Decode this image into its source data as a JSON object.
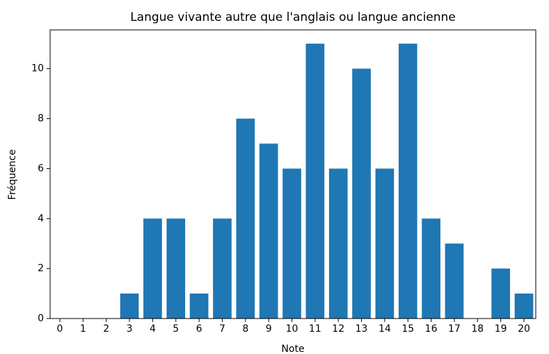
{
  "chart_data": {
    "type": "bar",
    "title": "Langue vivante autre que l'anglais ou langue ancienne",
    "xlabel": "Note",
    "ylabel": "Fréquence",
    "x": [
      0,
      1,
      2,
      3,
      4,
      5,
      6,
      7,
      8,
      9,
      10,
      11,
      12,
      13,
      14,
      15,
      16,
      17,
      18,
      19,
      20
    ],
    "values": [
      0,
      0,
      0,
      1,
      4,
      4,
      1,
      4,
      8,
      7,
      6,
      11,
      6,
      10,
      6,
      11,
      4,
      3,
      0,
      2,
      1
    ],
    "color": "#1f77b4",
    "xlim": [
      -0.42,
      20.51
    ],
    "xticks": [
      0,
      1,
      2,
      3,
      4,
      5,
      6,
      7,
      8,
      9,
      10,
      11,
      12,
      13,
      14,
      15,
      16,
      17,
      18,
      19,
      20
    ],
    "ylim": [
      0,
      11.55
    ],
    "yticks": [
      0,
      2,
      4,
      6,
      8,
      10
    ]
  }
}
